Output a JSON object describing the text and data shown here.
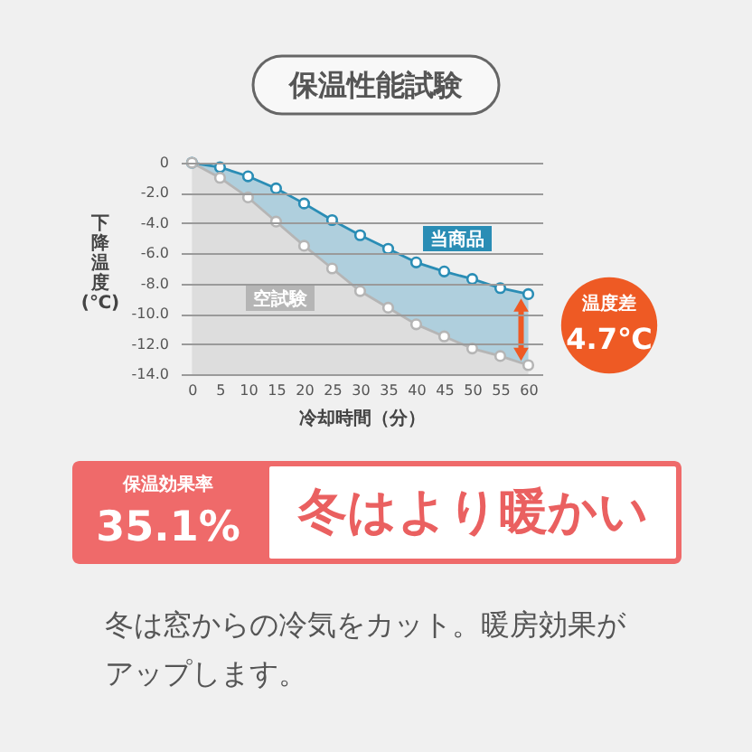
{
  "chart_data": {
    "type": "line",
    "title": "保温性能試験",
    "xlabel": "冷却時間（分）",
    "ylabel": "下降温度(℃)",
    "x": [
      0,
      5,
      10,
      15,
      20,
      25,
      30,
      35,
      40,
      45,
      50,
      55,
      60
    ],
    "xlim": [
      -2,
      62.5
    ],
    "xticks": [
      0,
      5,
      10,
      15,
      20,
      25,
      30,
      35,
      40,
      45,
      50,
      55,
      60
    ],
    "ylim": [
      -14,
      0
    ],
    "yticks": [
      0,
      {
        "value": -2,
        "label": "-2.0"
      },
      {
        "value": -4,
        "label": "-4.0"
      },
      {
        "value": -6,
        "label": "-6.0"
      },
      {
        "value": -8,
        "label": "-8.0"
      },
      {
        "value": -10,
        "label": "-10.0"
      },
      {
        "value": -12,
        "label": "-12.0"
      },
      {
        "value": -14,
        "label": "-14.0"
      }
    ],
    "grid": "y",
    "marker": "circle",
    "series": [
      {
        "name": "当商品",
        "color": "#2a8db5",
        "values": [
          0,
          -0.3,
          -0.9,
          -1.7,
          -2.7,
          -3.8,
          -4.8,
          -5.7,
          -6.6,
          -7.2,
          -7.7,
          -8.3,
          -8.7
        ],
        "lower": [
          0,
          -1.0,
          -2.3,
          -3.9,
          -5.5,
          -7.0,
          -8.5,
          -9.6,
          -10.7,
          -11.5,
          -12.3,
          -12.8,
          -13.4
        ],
        "upper": [
          0,
          -0.3,
          -0.9,
          -1.7,
          -2.7,
          -3.8,
          -4.8,
          -5.7,
          -6.6,
          -7.2,
          -7.7,
          -8.3,
          -8.7
        ]
      },
      {
        "name": "空試験",
        "color": "#b5b5b5",
        "values": [
          0,
          -1.0,
          -2.3,
          -3.9,
          -5.5,
          -7.0,
          -8.5,
          -9.6,
          -10.7,
          -11.5,
          -12.3,
          -12.8,
          -13.4
        ],
        "lower": [
          -14,
          -14,
          -14,
          -14,
          -14,
          -14,
          -14,
          -14,
          -14,
          -14,
          -14,
          -14,
          -14
        ],
        "upper": [
          0,
          -1.0,
          -2.3,
          -3.9,
          -5.5,
          -7.0,
          -8.5,
          -9.6,
          -10.7,
          -11.5,
          -12.3,
          -12.8,
          -13.4
        ]
      }
    ],
    "annotations": [
      "温度差",
      "4.7℃",
      "保温効果率",
      "35.1%",
      "冬はより暖かい",
      "冬は窓からの冷気をカット。暖房効果がアップします。"
    ]
  }
}
